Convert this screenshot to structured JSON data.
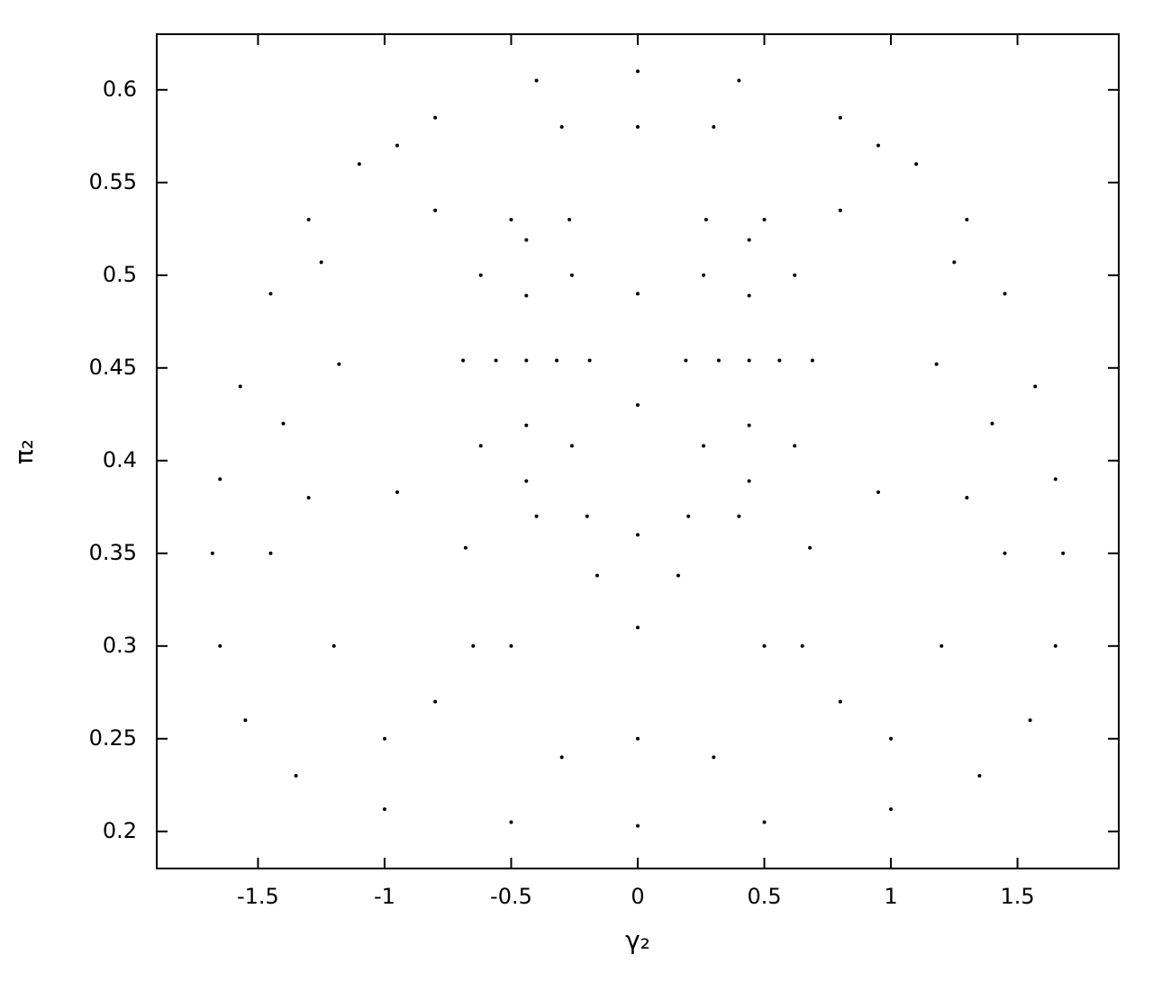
{
  "chart_data": {
    "type": "scatter",
    "xlabel": "γ₂",
    "ylabel": "π₂",
    "color": "#000000",
    "xlim": [
      -1.9,
      1.9
    ],
    "xticks": [
      -1.5,
      -1,
      -0.5,
      0,
      0.5,
      1,
      1.5
    ],
    "ylim": [
      0.18,
      0.63
    ],
    "yticks": [
      0.2,
      0.25,
      0.3,
      0.35,
      0.4,
      0.45,
      0.5,
      0.55,
      0.6
    ],
    "x": [
      0,
      0.4,
      0.8,
      1.1,
      1.3,
      1.45,
      1.57,
      1.65,
      1.68,
      1.65,
      1.55,
      1.35,
      1.0,
      0.5,
      -0.4,
      -0.8,
      -1.1,
      -1.3,
      -1.45,
      -1.57,
      -1.65,
      -1.68,
      -1.65,
      -1.55,
      -1.35,
      -1.0,
      -0.5,
      0,
      0.69,
      0.62,
      0.44,
      0.26,
      0.19,
      0.26,
      0.44,
      0.62,
      0.56,
      0.44,
      0.32,
      0.44,
      0.44,
      -0.69,
      -0.62,
      -0.44,
      -0.26,
      -0.19,
      -0.26,
      -0.44,
      -0.62,
      -0.56,
      -0.44,
      -0.32,
      -0.44,
      -0.44,
      0.16,
      -0.16,
      0.68,
      -0.68,
      0.95,
      -0.95,
      1.18,
      -1.18,
      1.25,
      -1.25,
      0.95,
      -0.95,
      0.8,
      -0.8,
      0.5,
      -0.5,
      0.27,
      -0.27,
      0.5,
      -0.5,
      0.65,
      -0.65,
      0.2,
      -0.2,
      0.4,
      -0.4,
      1.3,
      -1.3,
      0,
      0.3,
      -0.3,
      0.8,
      -0.8,
      1.2,
      -1.2,
      1.45,
      -1.45,
      0,
      0.3,
      -0.3,
      0,
      0,
      0,
      0,
      1.0,
      -1.0,
      1.4,
      -1.4
    ],
    "y": [
      0.61,
      0.605,
      0.585,
      0.56,
      0.53,
      0.49,
      0.44,
      0.39,
      0.35,
      0.3,
      0.26,
      0.23,
      0.212,
      0.205,
      0.605,
      0.585,
      0.56,
      0.53,
      0.49,
      0.44,
      0.39,
      0.35,
      0.3,
      0.26,
      0.23,
      0.212,
      0.205,
      0.203,
      0.454,
      0.5,
      0.519,
      0.5,
      0.454,
      0.408,
      0.389,
      0.408,
      0.454,
      0.489,
      0.454,
      0.419,
      0.454,
      0.454,
      0.5,
      0.519,
      0.5,
      0.454,
      0.408,
      0.389,
      0.408,
      0.454,
      0.489,
      0.454,
      0.419,
      0.454,
      0.338,
      0.338,
      0.353,
      0.353,
      0.383,
      0.383,
      0.452,
      0.452,
      0.507,
      0.507,
      0.57,
      0.57,
      0.535,
      0.535,
      0.53,
      0.53,
      0.53,
      0.53,
      0.3,
      0.3,
      0.3,
      0.3,
      0.37,
      0.37,
      0.37,
      0.37,
      0.38,
      0.38,
      0.25,
      0.24,
      0.24,
      0.27,
      0.27,
      0.3,
      0.3,
      0.35,
      0.35,
      0.58,
      0.58,
      0.58,
      0.43,
      0.49,
      0.36,
      0.31,
      0.25,
      0.25,
      0.42,
      0.42
    ]
  }
}
